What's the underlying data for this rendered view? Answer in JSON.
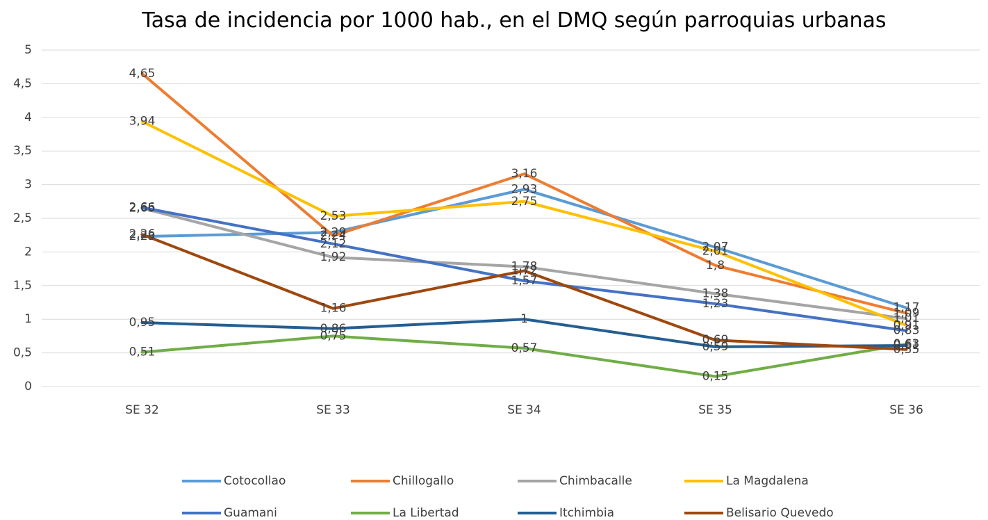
{
  "chart_data": {
    "type": "line",
    "title": "Tasa de incidencia por 1000 hab., en el DMQ según parroquias urbanas",
    "categories": [
      "SE 32",
      "SE 33",
      "SE 34",
      "SE 35",
      "SE 36"
    ],
    "series": [
      {
        "name": "Cotocollao",
        "color": "#5b9bd5",
        "values": [
          2.23,
          2.29,
          2.93,
          2.07,
          1.17
        ],
        "value_labels": [
          "2,23",
          "2,29",
          "2,93",
          "2,07",
          "1,17"
        ]
      },
      {
        "name": "Chillogallo",
        "color": "#ed7d31",
        "values": [
          4.65,
          2.24,
          3.16,
          1.8,
          1.09
        ],
        "value_labels": [
          "4,65",
          "2,24",
          "3,16",
          "1,8",
          "1,09"
        ]
      },
      {
        "name": "Chimbacalle",
        "color": "#a5a5a5",
        "values": [
          2.65,
          1.92,
          1.78,
          1.38,
          1.01
        ],
        "value_labels": [
          "2,65",
          "1,92",
          "1,78",
          "1,38",
          "1,01"
        ]
      },
      {
        "name": "La Magdalena",
        "color": "#ffc000",
        "values": [
          3.94,
          2.53,
          2.75,
          2.01,
          0.91
        ],
        "value_labels": [
          "3,94",
          "2,53",
          "2,75",
          "2,01",
          "0,91"
        ]
      },
      {
        "name": "Guamani",
        "color": "#4472c4",
        "values": [
          2.66,
          2.12,
          1.57,
          1.23,
          0.83
        ],
        "value_labels": [
          "2,66",
          "2,12",
          "1,57",
          "1,23",
          "0,83"
        ]
      },
      {
        "name": "La Libertad",
        "color": "#70ad47",
        "values": [
          0.51,
          0.75,
          0.57,
          0.15,
          0.63
        ],
        "value_labels": [
          "0,51",
          "0,75",
          "0,57",
          "0,15",
          "0,63"
        ]
      },
      {
        "name": "Itchimbia",
        "color": "#255e91",
        "values": [
          0.95,
          0.86,
          1,
          0.59,
          0.61
        ],
        "value_labels": [
          "0,95",
          "0,86",
          "1",
          "0,59",
          "0,61"
        ]
      },
      {
        "name": "Belisario Quevedo",
        "color": "#9e480e",
        "values": [
          2.26,
          1.16,
          1.72,
          0.69,
          0.55
        ],
        "value_labels": [
          "2,26",
          "1,16",
          "1,72",
          "0,69",
          "0,55"
        ]
      }
    ],
    "ylim": [
      0,
      5
    ],
    "yticks": [
      0,
      {
        "value": 0.5,
        "label": "0,5"
      },
      1,
      {
        "value": 1.5,
        "label": "1,5"
      },
      2,
      {
        "value": 2.5,
        "label": "2,5"
      },
      3,
      {
        "value": 3.5,
        "label": "3,5"
      },
      4,
      {
        "value": 4.5,
        "label": "4,5"
      },
      5
    ],
    "grid": true,
    "legend": "bottom"
  }
}
